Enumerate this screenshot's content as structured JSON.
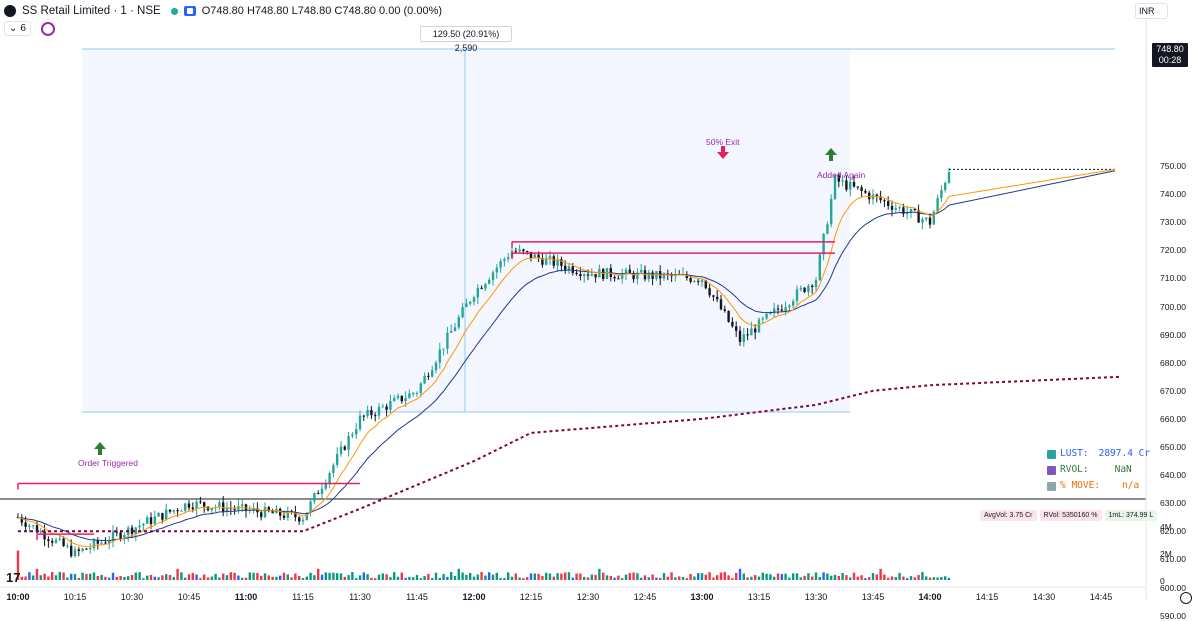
{
  "header": {
    "symbol": "SS Retail Limited · 1 · NSE",
    "ohlc": "O748.80 H748.80 L748.80 C748.80 0.00 (0.00%)",
    "collapse_count": "6",
    "currency": "INR"
  },
  "price_tag": {
    "price": "748.80",
    "countdown": "00:28"
  },
  "measure_label": "129.50 (20.91%) 2,590",
  "annotations": {
    "order_triggered": "Order Triggered",
    "exit": "50% Exit",
    "added_again": "Added Again"
  },
  "stats": {
    "lust_label": "LUST:",
    "lust_value": "2897.4 Cr",
    "rvol_label": "RVOL:",
    "rvol_value": "NaN",
    "move_label": "% MOVE:",
    "move_value": "n/a"
  },
  "volume_badges": [
    "AvgVol: 3.75 Cr",
    "RVol: 5350160 %",
    "1mL: 374.99 L"
  ],
  "colors": {
    "up": "#26a69a",
    "down": "#131722",
    "fast_ma": "#ff9800",
    "slow_ma": "#1e3a8a",
    "vwap": "#800040",
    "level": "#e91e63",
    "vol_up": "#089981",
    "vol_down": "#f23645",
    "vol_blue": "#2962ff"
  },
  "chart_data": {
    "type": "candlestick",
    "y_ticks": [
      "750.00",
      "740.00",
      "730.00",
      "720.00",
      "710.00",
      "700.00",
      "690.00",
      "680.00",
      "670.00",
      "660.00",
      "650.00",
      "640.00",
      "630.00",
      "620.00",
      "610.00",
      "600.00",
      "590.00"
    ],
    "ylim": [
      588,
      752
    ],
    "x_ticks": [
      "10:00",
      "10:15",
      "10:30",
      "10:45",
      "11:00",
      "11:15",
      "11:30",
      "11:45",
      "12:00",
      "12:15",
      "12:30",
      "12:45",
      "13:00",
      "13:15",
      "13:30",
      "13:45",
      "14:00",
      "14:15",
      "14:30",
      "14:45"
    ],
    "bold_x_ticks": [
      "10:00",
      "11:00",
      "12:00",
      "13:00",
      "14:00"
    ],
    "volume_ticks": [
      "4M",
      "2M",
      "0"
    ],
    "key_prices": [
      {
        "time": "10:00",
        "price": 625
      },
      {
        "time": "10:15",
        "price": 612
      },
      {
        "time": "10:45",
        "price": 630
      },
      {
        "time": "11:15",
        "price": 625
      },
      {
        "time": "11:30",
        "price": 660
      },
      {
        "time": "11:45",
        "price": 670
      },
      {
        "time": "12:00",
        "price": 705
      },
      {
        "time": "12:10",
        "price": 720
      },
      {
        "time": "12:30",
        "price": 712
      },
      {
        "time": "13:00",
        "price": 710
      },
      {
        "time": "13:10",
        "price": 688
      },
      {
        "time": "13:30",
        "price": 710
      },
      {
        "time": "13:35",
        "price": 745
      },
      {
        "time": "14:00",
        "price": 730
      },
      {
        "time": "14:05",
        "price": 748.8
      }
    ],
    "vwap": [
      {
        "time": "10:00",
        "price": 620
      },
      {
        "time": "11:15",
        "price": 620
      },
      {
        "time": "11:30",
        "price": 628
      },
      {
        "time": "12:00",
        "price": 645
      },
      {
        "time": "12:15",
        "price": 655
      },
      {
        "time": "13:00",
        "price": 660
      },
      {
        "time": "13:30",
        "price": 665
      },
      {
        "time": "13:45",
        "price": 670
      },
      {
        "time": "14:00",
        "price": 672
      },
      {
        "time": "14:50",
        "price": 675
      }
    ],
    "levels": [
      {
        "price": 637,
        "from": "10:00",
        "to": "11:30"
      },
      {
        "price": 619,
        "from": "10:05",
        "to": "10:20"
      },
      {
        "price": 723,
        "from": "12:10",
        "to": "13:35"
      },
      {
        "price": 719,
        "from": "12:10",
        "to": "13:35"
      }
    ],
    "last_price": 748.8
  }
}
